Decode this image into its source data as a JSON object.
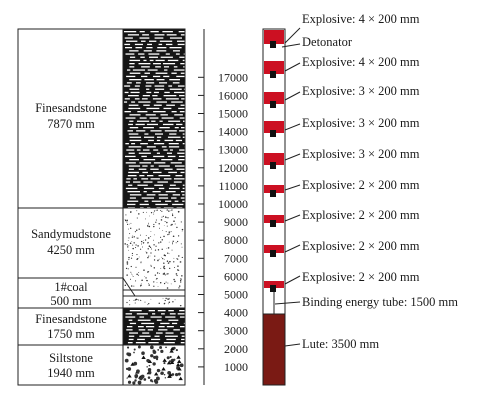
{
  "axis": {
    "ticks": [
      "1000",
      "2000",
      "3000",
      "4000",
      "5000",
      "6000",
      "7000",
      "8000",
      "9000",
      "10000",
      "11000",
      "12000",
      "13000",
      "14000",
      "15000",
      "16000",
      "17000"
    ]
  },
  "strata": [
    {
      "name": "Finesandstone",
      "thickness": "7870 mm",
      "pattern": "dashes"
    },
    {
      "name": "Sandymudstone",
      "thickness": "4250 mm",
      "pattern": "dots"
    },
    {
      "name": "1#coal",
      "thickness": "500 mm",
      "pattern": "coal"
    },
    {
      "name": "Finesandstone",
      "thickness": "1750 mm",
      "pattern": "dashes"
    },
    {
      "name": "Siltstone",
      "thickness": "1940 mm",
      "pattern": "coarse-dots"
    }
  ],
  "charges": [
    {
      "label": "Explosive: 4 × 200 mm"
    },
    {
      "label": "Explosive: 4 × 200 mm"
    },
    {
      "label": "Explosive: 3 × 200 mm"
    },
    {
      "label": "Explosive: 3 × 200 mm"
    },
    {
      "label": "Explosive: 3 × 200 mm"
    },
    {
      "label": "Explosive: 2 × 200 mm"
    },
    {
      "label": "Explosive: 2 × 200 mm"
    },
    {
      "label": "Explosive: 2 × 200 mm"
    },
    {
      "label": "Explosive: 2 × 200 mm"
    }
  ],
  "detonator_label": "Detonator",
  "tube_label": "Binding energy tube: 1500 mm",
  "lute_label": "Lute: 3500 mm",
  "colors": {
    "explosive": "#cc1022",
    "lute": "#7a1a14",
    "detonator": "#111111"
  }
}
